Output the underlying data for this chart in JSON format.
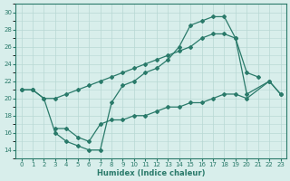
{
  "xlabel": "Humidex (Indice chaleur)",
  "bg_color": "#d8eeeb",
  "grid_color": "#b8d8d4",
  "line_color": "#2a7a6a",
  "xlim": [
    -0.5,
    23.5
  ],
  "ylim": [
    13,
    31
  ],
  "xticks": [
    0,
    1,
    2,
    3,
    4,
    5,
    6,
    7,
    8,
    9,
    10,
    11,
    12,
    13,
    14,
    15,
    16,
    17,
    18,
    19,
    20,
    21,
    22,
    23
  ],
  "yticks": [
    14,
    16,
    18,
    20,
    22,
    24,
    26,
    28,
    30
  ],
  "line1_x": [
    0,
    1,
    2,
    3,
    4,
    5,
    6,
    7,
    8,
    9,
    10,
    11,
    12,
    13,
    14,
    15,
    16,
    17,
    18,
    19,
    20,
    21
  ],
  "line1_y": [
    21,
    21,
    20,
    16,
    15,
    14.5,
    14,
    14,
    19.5,
    21.5,
    22,
    23,
    23.5,
    24.5,
    26,
    28.5,
    29,
    29.5,
    29.5,
    27,
    23,
    22.5
  ],
  "line2_x": [
    0,
    1,
    2,
    3,
    4,
    5,
    6,
    7,
    8,
    9,
    10,
    11,
    12,
    13,
    14,
    15,
    16,
    17,
    18,
    19,
    20,
    22,
    23
  ],
  "line2_y": [
    21,
    21,
    20,
    20,
    20.5,
    21,
    21.5,
    22,
    22.5,
    23,
    23.5,
    24,
    24.5,
    25,
    25.5,
    26,
    27,
    27.5,
    27.5,
    27,
    20.5,
    22,
    20.5
  ],
  "line3_x": [
    3,
    4,
    5,
    6,
    7,
    8,
    9,
    10,
    11,
    12,
    13,
    14,
    15,
    16,
    17,
    18,
    19,
    20,
    22,
    23
  ],
  "line3_y": [
    16.5,
    16.5,
    15.5,
    15,
    17,
    17.5,
    17.5,
    18,
    18,
    18.5,
    19,
    19,
    19.5,
    19.5,
    20,
    20.5,
    20.5,
    20,
    22,
    20.5
  ]
}
